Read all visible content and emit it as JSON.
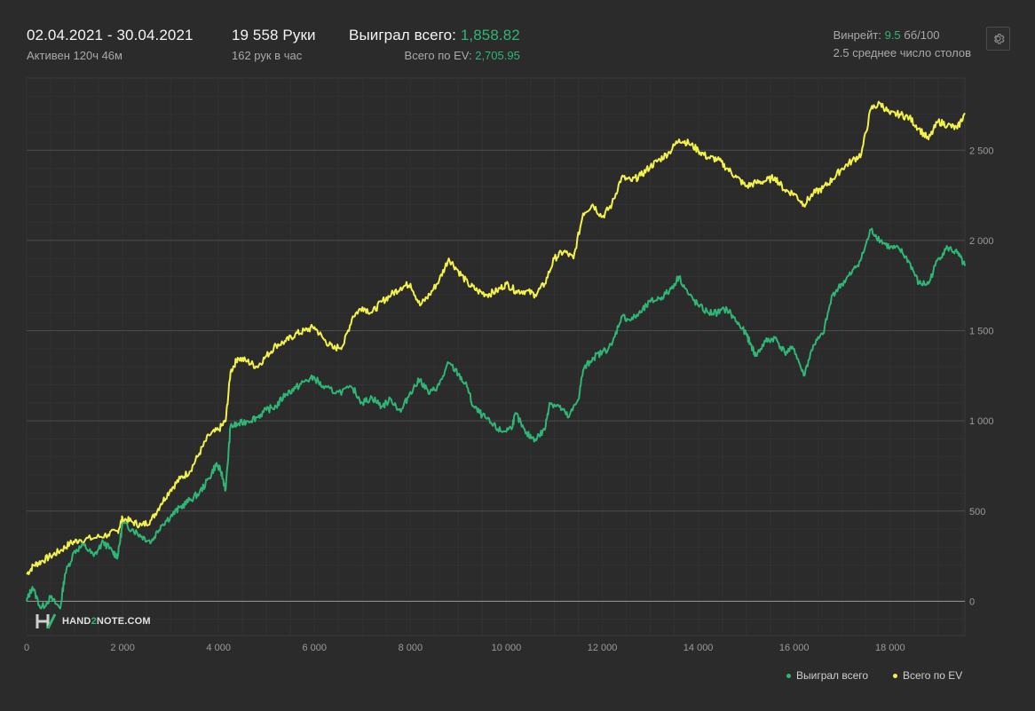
{
  "header": {
    "date_range": "02.04.2021 - 30.04.2021",
    "active_time": "Активен 120ч 46м",
    "hands": "19 558 Руки",
    "hands_per_hour": "162 рук в час",
    "won_label": "Выиграл всего:",
    "won_value": "1,858.82",
    "ev_label": "Всего по EV:",
    "ev_value": "2,705.95",
    "winrate_label": "Винрейт:",
    "winrate_value": "9.5",
    "winrate_unit": "бб/100",
    "avg_tables": "2.5 среднее число столов"
  },
  "logo": {
    "text_part1": "HAND",
    "text_part2": "2",
    "text_part3": "NOTE.COM"
  },
  "colors": {
    "won": "#2fb574",
    "ev": "#f2f24a",
    "grid": "#444444",
    "zero": "#9a9a9a",
    "background": "#2b2b2b"
  },
  "legend": [
    {
      "label": "Выиграл всего",
      "color": "#2fb574"
    },
    {
      "label": "Всего по EV",
      "color": "#f2f24a"
    }
  ],
  "chart_data": {
    "type": "line",
    "xlim": [
      0,
      19558
    ],
    "ylim": [
      -190,
      2900
    ],
    "x_ticks": [
      0,
      2000,
      4000,
      6000,
      8000,
      10000,
      12000,
      14000,
      16000,
      18000
    ],
    "x_tick_labels": [
      "0",
      "2 000",
      "4 000",
      "6 000",
      "8 000",
      "10 000",
      "12 000",
      "14 000",
      "16 000",
      "18 000"
    ],
    "y_ticks": [
      0,
      500,
      1000,
      1500,
      2000,
      2500
    ],
    "y_tick_labels": [
      "0",
      "500",
      "1 000",
      "1 500",
      "2 000",
      "2 500"
    ],
    "grid": true,
    "legend_position": "bottom-right",
    "series": [
      {
        "name": "Выиграл всего",
        "color": "#2fb574",
        "points": [
          [
            0,
            0
          ],
          [
            120,
            80
          ],
          [
            300,
            -40
          ],
          [
            500,
            20
          ],
          [
            700,
            -40
          ],
          [
            800,
            150
          ],
          [
            1000,
            280
          ],
          [
            1200,
            310
          ],
          [
            1400,
            250
          ],
          [
            1600,
            330
          ],
          [
            1800,
            270
          ],
          [
            1900,
            250
          ],
          [
            2000,
            430
          ],
          [
            2200,
            400
          ],
          [
            2400,
            360
          ],
          [
            2600,
            330
          ],
          [
            2800,
            420
          ],
          [
            3000,
            470
          ],
          [
            3200,
            520
          ],
          [
            3400,
            560
          ],
          [
            3600,
            600
          ],
          [
            3800,
            680
          ],
          [
            3950,
            760
          ],
          [
            4050,
            720
          ],
          [
            4150,
            620
          ],
          [
            4250,
            970
          ],
          [
            4400,
            980
          ],
          [
            4600,
            1000
          ],
          [
            4800,
            1020
          ],
          [
            5000,
            1060
          ],
          [
            5200,
            1080
          ],
          [
            5400,
            1150
          ],
          [
            5600,
            1180
          ],
          [
            5800,
            1220
          ],
          [
            6000,
            1240
          ],
          [
            6200,
            1180
          ],
          [
            6500,
            1160
          ],
          [
            6800,
            1180
          ],
          [
            7000,
            1100
          ],
          [
            7200,
            1130
          ],
          [
            7400,
            1080
          ],
          [
            7600,
            1120
          ],
          [
            7800,
            1050
          ],
          [
            8000,
            1160
          ],
          [
            8200,
            1230
          ],
          [
            8400,
            1150
          ],
          [
            8600,
            1200
          ],
          [
            8800,
            1320
          ],
          [
            9000,
            1260
          ],
          [
            9200,
            1180
          ],
          [
            9300,
            1080
          ],
          [
            9500,
            1030
          ],
          [
            9700,
            980
          ],
          [
            9900,
            940
          ],
          [
            10100,
            960
          ],
          [
            10200,
            1040
          ],
          [
            10400,
            930
          ],
          [
            10600,
            900
          ],
          [
            10800,
            950
          ],
          [
            10900,
            1100
          ],
          [
            11100,
            1080
          ],
          [
            11300,
            1020
          ],
          [
            11500,
            1120
          ],
          [
            11600,
            1280
          ],
          [
            11800,
            1350
          ],
          [
            12000,
            1380
          ],
          [
            12200,
            1420
          ],
          [
            12400,
            1580
          ],
          [
            12600,
            1560
          ],
          [
            12800,
            1600
          ],
          [
            13000,
            1660
          ],
          [
            13200,
            1680
          ],
          [
            13400,
            1720
          ],
          [
            13600,
            1800
          ],
          [
            13800,
            1700
          ],
          [
            14000,
            1640
          ],
          [
            14200,
            1600
          ],
          [
            14400,
            1600
          ],
          [
            14600,
            1620
          ],
          [
            14800,
            1550
          ],
          [
            15000,
            1480
          ],
          [
            15100,
            1420
          ],
          [
            15200,
            1360
          ],
          [
            15400,
            1440
          ],
          [
            15600,
            1460
          ],
          [
            15800,
            1380
          ],
          [
            16000,
            1400
          ],
          [
            16200,
            1250
          ],
          [
            16400,
            1420
          ],
          [
            16600,
            1480
          ],
          [
            16800,
            1700
          ],
          [
            17000,
            1760
          ],
          [
            17200,
            1820
          ],
          [
            17400,
            1900
          ],
          [
            17600,
            2060
          ],
          [
            17800,
            2000
          ],
          [
            18000,
            1960
          ],
          [
            18200,
            1950
          ],
          [
            18400,
            1880
          ],
          [
            18600,
            1760
          ],
          [
            18800,
            1760
          ],
          [
            19000,
            1900
          ],
          [
            19200,
            1960
          ],
          [
            19400,
            1930
          ],
          [
            19558,
            1858.82
          ]
        ]
      },
      {
        "name": "Всего по EV",
        "color": "#f2f24a",
        "points": [
          [
            0,
            150
          ],
          [
            150,
            200
          ],
          [
            300,
            220
          ],
          [
            500,
            250
          ],
          [
            700,
            280
          ],
          [
            900,
            320
          ],
          [
            1100,
            340
          ],
          [
            1400,
            350
          ],
          [
            1700,
            370
          ],
          [
            1900,
            390
          ],
          [
            2000,
            460
          ],
          [
            2200,
            440
          ],
          [
            2400,
            420
          ],
          [
            2600,
            450
          ],
          [
            2800,
            540
          ],
          [
            3000,
            620
          ],
          [
            3200,
            680
          ],
          [
            3400,
            720
          ],
          [
            3600,
            820
          ],
          [
            3800,
            920
          ],
          [
            4000,
            950
          ],
          [
            4150,
            1000
          ],
          [
            4250,
            1270
          ],
          [
            4400,
            1350
          ],
          [
            4600,
            1330
          ],
          [
            4800,
            1300
          ],
          [
            5000,
            1360
          ],
          [
            5200,
            1420
          ],
          [
            5400,
            1440
          ],
          [
            5600,
            1480
          ],
          [
            5800,
            1500
          ],
          [
            6000,
            1520
          ],
          [
            6200,
            1450
          ],
          [
            6400,
            1400
          ],
          [
            6600,
            1420
          ],
          [
            6800,
            1580
          ],
          [
            7000,
            1630
          ],
          [
            7200,
            1600
          ],
          [
            7400,
            1660
          ],
          [
            7600,
            1700
          ],
          [
            7800,
            1740
          ],
          [
            8000,
            1760
          ],
          [
            8200,
            1640
          ],
          [
            8400,
            1700
          ],
          [
            8600,
            1780
          ],
          [
            8800,
            1900
          ],
          [
            9000,
            1830
          ],
          [
            9200,
            1760
          ],
          [
            9400,
            1720
          ],
          [
            9600,
            1700
          ],
          [
            9800,
            1720
          ],
          [
            10000,
            1760
          ],
          [
            10200,
            1720
          ],
          [
            10400,
            1720
          ],
          [
            10600,
            1700
          ],
          [
            10800,
            1760
          ],
          [
            11000,
            1900
          ],
          [
            11200,
            1940
          ],
          [
            11400,
            1900
          ],
          [
            11600,
            2150
          ],
          [
            11800,
            2200
          ],
          [
            12000,
            2130
          ],
          [
            12200,
            2200
          ],
          [
            12400,
            2350
          ],
          [
            12600,
            2330
          ],
          [
            12800,
            2360
          ],
          [
            13000,
            2410
          ],
          [
            13200,
            2450
          ],
          [
            13400,
            2490
          ],
          [
            13600,
            2560
          ],
          [
            13800,
            2540
          ],
          [
            14000,
            2500
          ],
          [
            14200,
            2460
          ],
          [
            14400,
            2450
          ],
          [
            14600,
            2400
          ],
          [
            14800,
            2350
          ],
          [
            15000,
            2300
          ],
          [
            15200,
            2320
          ],
          [
            15400,
            2330
          ],
          [
            15600,
            2350
          ],
          [
            15800,
            2280
          ],
          [
            16000,
            2260
          ],
          [
            16200,
            2200
          ],
          [
            16400,
            2260
          ],
          [
            16600,
            2290
          ],
          [
            16800,
            2340
          ],
          [
            17000,
            2400
          ],
          [
            17200,
            2440
          ],
          [
            17400,
            2480
          ],
          [
            17600,
            2730
          ],
          [
            17800,
            2760
          ],
          [
            18000,
            2700
          ],
          [
            18200,
            2700
          ],
          [
            18400,
            2680
          ],
          [
            18600,
            2620
          ],
          [
            18800,
            2560
          ],
          [
            19000,
            2660
          ],
          [
            19200,
            2640
          ],
          [
            19400,
            2620
          ],
          [
            19558,
            2705.95
          ]
        ]
      }
    ]
  }
}
